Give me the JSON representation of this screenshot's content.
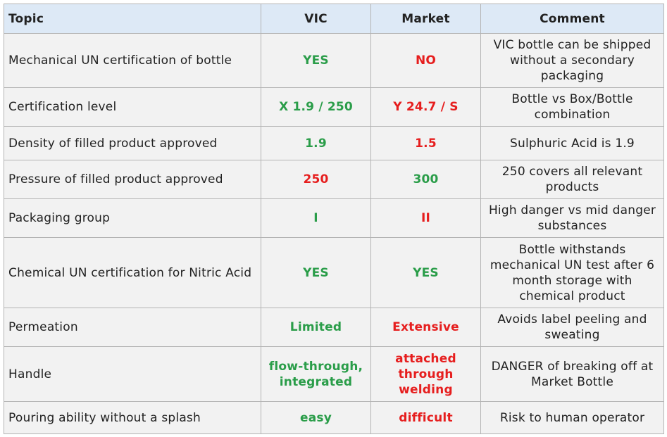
{
  "header": {
    "topic": "Topic",
    "vic": "VIC",
    "market": "Market",
    "comment": "Comment"
  },
  "colors": {
    "positive": "#2a9d49",
    "negative": "#e61e1e",
    "header_bg": "#dde9f6",
    "row_bg": "#f2f2f2"
  },
  "rows": [
    {
      "topic": "Mechanical UN certification of bottle",
      "vic": "YES",
      "market": "NO",
      "comment": "VIC bottle can be shipped without a secondary packaging"
    },
    {
      "topic": "Certification level",
      "vic": "X 1.9 / 250",
      "market": "Y 24.7 / S",
      "comment": "Bottle vs Box/Bottle combination"
    },
    {
      "topic": "Density of filled product approved",
      "vic": "1.9",
      "market": "1.5",
      "comment": "Sulphuric Acid is 1.9"
    },
    {
      "topic": "Pressure of filled product approved",
      "vic": "250",
      "market": "300",
      "comment": "250 covers all relevant products"
    },
    {
      "topic": "Packaging group",
      "vic": "I",
      "market": "II",
      "comment": "High danger vs mid danger substances"
    },
    {
      "topic": "Chemical UN certification for Nitric Acid",
      "vic": "YES",
      "market": "YES",
      "comment": "Bottle withstands mechanical UN test after 6 month storage with chemical product"
    },
    {
      "topic": "Permeation",
      "vic": "Limited",
      "market": "Extensive",
      "comment": "Avoids label peeling and sweating"
    },
    {
      "topic": "Handle",
      "vic": "flow-through, integrated",
      "market": "attached through welding",
      "comment": "DANGER of breaking off at Market Bottle"
    },
    {
      "topic": "Pouring ability without a splash",
      "vic": "easy",
      "market": "difficult",
      "comment": "Risk to human operator"
    }
  ]
}
